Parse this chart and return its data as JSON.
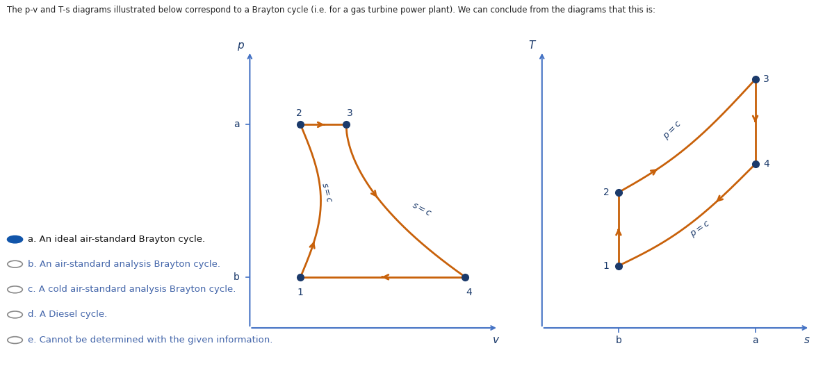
{
  "title_text": "The p-v and T-s diagrams illustrated below correspond to a Brayton cycle (i.e. for a gas turbine power plant). We can conclude from the diagrams that this is:",
  "orange_color": "#C8610A",
  "dark_blue": "#1B3A6B",
  "axis_color": "#4472C4",
  "bg_color": "#FFFFFF",
  "options": [
    {
      "label": "a. An ideal air-standard Brayton cycle.",
      "selected": true
    },
    {
      "label": "b. An air-standard analysis Brayton cycle.",
      "selected": false
    },
    {
      "label": "c. A cold air-standard analysis Brayton cycle.",
      "selected": false
    },
    {
      "label": "d. A Diesel cycle.",
      "selected": false
    },
    {
      "label": "e. Cannot be determined with the given information.",
      "selected": false
    }
  ]
}
